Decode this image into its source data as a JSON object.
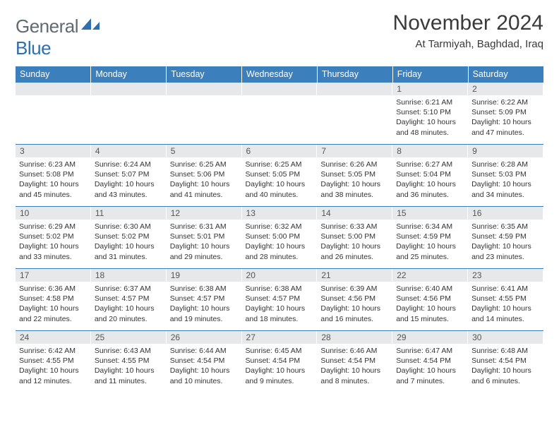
{
  "logo": {
    "word1": "General",
    "word2": "Blue",
    "word1_color": "#5f6a72",
    "word2_color": "#2f6fab",
    "mark_color": "#2f6fab"
  },
  "title": "November 2024",
  "location": "At Tarmiyah, Baghdad, Iraq",
  "colors": {
    "header_bg": "#3b7fbc",
    "header_fg": "#ffffff",
    "daynum_bg": "#e7e8e9",
    "rule": "#3b7fbc",
    "text": "#333333"
  },
  "weekdays": [
    "Sunday",
    "Monday",
    "Tuesday",
    "Wednesday",
    "Thursday",
    "Friday",
    "Saturday"
  ],
  "weeks": [
    [
      null,
      null,
      null,
      null,
      null,
      {
        "n": "1",
        "sunrise": "Sunrise: 6:21 AM",
        "sunset": "Sunset: 5:10 PM",
        "daylight": "Daylight: 10 hours and 48 minutes."
      },
      {
        "n": "2",
        "sunrise": "Sunrise: 6:22 AM",
        "sunset": "Sunset: 5:09 PM",
        "daylight": "Daylight: 10 hours and 47 minutes."
      }
    ],
    [
      {
        "n": "3",
        "sunrise": "Sunrise: 6:23 AM",
        "sunset": "Sunset: 5:08 PM",
        "daylight": "Daylight: 10 hours and 45 minutes."
      },
      {
        "n": "4",
        "sunrise": "Sunrise: 6:24 AM",
        "sunset": "Sunset: 5:07 PM",
        "daylight": "Daylight: 10 hours and 43 minutes."
      },
      {
        "n": "5",
        "sunrise": "Sunrise: 6:25 AM",
        "sunset": "Sunset: 5:06 PM",
        "daylight": "Daylight: 10 hours and 41 minutes."
      },
      {
        "n": "6",
        "sunrise": "Sunrise: 6:25 AM",
        "sunset": "Sunset: 5:05 PM",
        "daylight": "Daylight: 10 hours and 40 minutes."
      },
      {
        "n": "7",
        "sunrise": "Sunrise: 6:26 AM",
        "sunset": "Sunset: 5:05 PM",
        "daylight": "Daylight: 10 hours and 38 minutes."
      },
      {
        "n": "8",
        "sunrise": "Sunrise: 6:27 AM",
        "sunset": "Sunset: 5:04 PM",
        "daylight": "Daylight: 10 hours and 36 minutes."
      },
      {
        "n": "9",
        "sunrise": "Sunrise: 6:28 AM",
        "sunset": "Sunset: 5:03 PM",
        "daylight": "Daylight: 10 hours and 34 minutes."
      }
    ],
    [
      {
        "n": "10",
        "sunrise": "Sunrise: 6:29 AM",
        "sunset": "Sunset: 5:02 PM",
        "daylight": "Daylight: 10 hours and 33 minutes."
      },
      {
        "n": "11",
        "sunrise": "Sunrise: 6:30 AM",
        "sunset": "Sunset: 5:02 PM",
        "daylight": "Daylight: 10 hours and 31 minutes."
      },
      {
        "n": "12",
        "sunrise": "Sunrise: 6:31 AM",
        "sunset": "Sunset: 5:01 PM",
        "daylight": "Daylight: 10 hours and 29 minutes."
      },
      {
        "n": "13",
        "sunrise": "Sunrise: 6:32 AM",
        "sunset": "Sunset: 5:00 PM",
        "daylight": "Daylight: 10 hours and 28 minutes."
      },
      {
        "n": "14",
        "sunrise": "Sunrise: 6:33 AM",
        "sunset": "Sunset: 5:00 PM",
        "daylight": "Daylight: 10 hours and 26 minutes."
      },
      {
        "n": "15",
        "sunrise": "Sunrise: 6:34 AM",
        "sunset": "Sunset: 4:59 PM",
        "daylight": "Daylight: 10 hours and 25 minutes."
      },
      {
        "n": "16",
        "sunrise": "Sunrise: 6:35 AM",
        "sunset": "Sunset: 4:59 PM",
        "daylight": "Daylight: 10 hours and 23 minutes."
      }
    ],
    [
      {
        "n": "17",
        "sunrise": "Sunrise: 6:36 AM",
        "sunset": "Sunset: 4:58 PM",
        "daylight": "Daylight: 10 hours and 22 minutes."
      },
      {
        "n": "18",
        "sunrise": "Sunrise: 6:37 AM",
        "sunset": "Sunset: 4:57 PM",
        "daylight": "Daylight: 10 hours and 20 minutes."
      },
      {
        "n": "19",
        "sunrise": "Sunrise: 6:38 AM",
        "sunset": "Sunset: 4:57 PM",
        "daylight": "Daylight: 10 hours and 19 minutes."
      },
      {
        "n": "20",
        "sunrise": "Sunrise: 6:38 AM",
        "sunset": "Sunset: 4:57 PM",
        "daylight": "Daylight: 10 hours and 18 minutes."
      },
      {
        "n": "21",
        "sunrise": "Sunrise: 6:39 AM",
        "sunset": "Sunset: 4:56 PM",
        "daylight": "Daylight: 10 hours and 16 minutes."
      },
      {
        "n": "22",
        "sunrise": "Sunrise: 6:40 AM",
        "sunset": "Sunset: 4:56 PM",
        "daylight": "Daylight: 10 hours and 15 minutes."
      },
      {
        "n": "23",
        "sunrise": "Sunrise: 6:41 AM",
        "sunset": "Sunset: 4:55 PM",
        "daylight": "Daylight: 10 hours and 14 minutes."
      }
    ],
    [
      {
        "n": "24",
        "sunrise": "Sunrise: 6:42 AM",
        "sunset": "Sunset: 4:55 PM",
        "daylight": "Daylight: 10 hours and 12 minutes."
      },
      {
        "n": "25",
        "sunrise": "Sunrise: 6:43 AM",
        "sunset": "Sunset: 4:55 PM",
        "daylight": "Daylight: 10 hours and 11 minutes."
      },
      {
        "n": "26",
        "sunrise": "Sunrise: 6:44 AM",
        "sunset": "Sunset: 4:54 PM",
        "daylight": "Daylight: 10 hours and 10 minutes."
      },
      {
        "n": "27",
        "sunrise": "Sunrise: 6:45 AM",
        "sunset": "Sunset: 4:54 PM",
        "daylight": "Daylight: 10 hours and 9 minutes."
      },
      {
        "n": "28",
        "sunrise": "Sunrise: 6:46 AM",
        "sunset": "Sunset: 4:54 PM",
        "daylight": "Daylight: 10 hours and 8 minutes."
      },
      {
        "n": "29",
        "sunrise": "Sunrise: 6:47 AM",
        "sunset": "Sunset: 4:54 PM",
        "daylight": "Daylight: 10 hours and 7 minutes."
      },
      {
        "n": "30",
        "sunrise": "Sunrise: 6:48 AM",
        "sunset": "Sunset: 4:54 PM",
        "daylight": "Daylight: 10 hours and 6 minutes."
      }
    ]
  ]
}
